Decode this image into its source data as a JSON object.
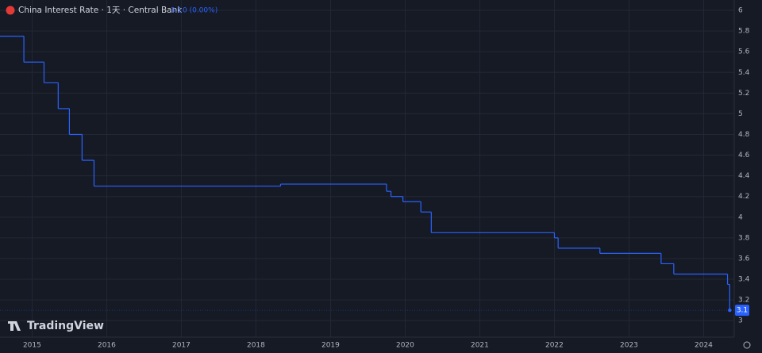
{
  "chart_data": {
    "type": "step",
    "title": "China Interest Rate · 1天 · Central Bank",
    "change": "0 (0.00%)",
    "brand": "TradingView",
    "color": "#2962ff",
    "x": [
      2014.57,
      2014.89,
      2015.16,
      2015.35,
      2015.5,
      2015.67,
      2015.83,
      2018.33,
      2019.75,
      2019.81,
      2019.97,
      2020.21,
      2020.35,
      2022.0,
      2022.05,
      2022.61,
      2023.43,
      2023.6,
      2024.32,
      2024.35
    ],
    "values": [
      5.75,
      5.5,
      5.3,
      5.05,
      4.8,
      4.55,
      4.3,
      4.32,
      4.25,
      4.2,
      4.15,
      4.05,
      3.85,
      3.8,
      3.7,
      3.65,
      3.55,
      3.45,
      3.35,
      3.1
    ],
    "xlim": [
      2014.57,
      2024.41
    ],
    "xticks": [
      2015,
      2016,
      2017,
      2018,
      2019,
      2020,
      2021,
      2022,
      2023,
      2024
    ],
    "ylim": [
      2.84,
      6.1
    ],
    "yticks": [
      3,
      3.2,
      3.4,
      3.6,
      3.8,
      4,
      4.2,
      4.4,
      4.6,
      4.8,
      5,
      5.2,
      5.4,
      5.6,
      5.8,
      6
    ],
    "grid": true
  }
}
